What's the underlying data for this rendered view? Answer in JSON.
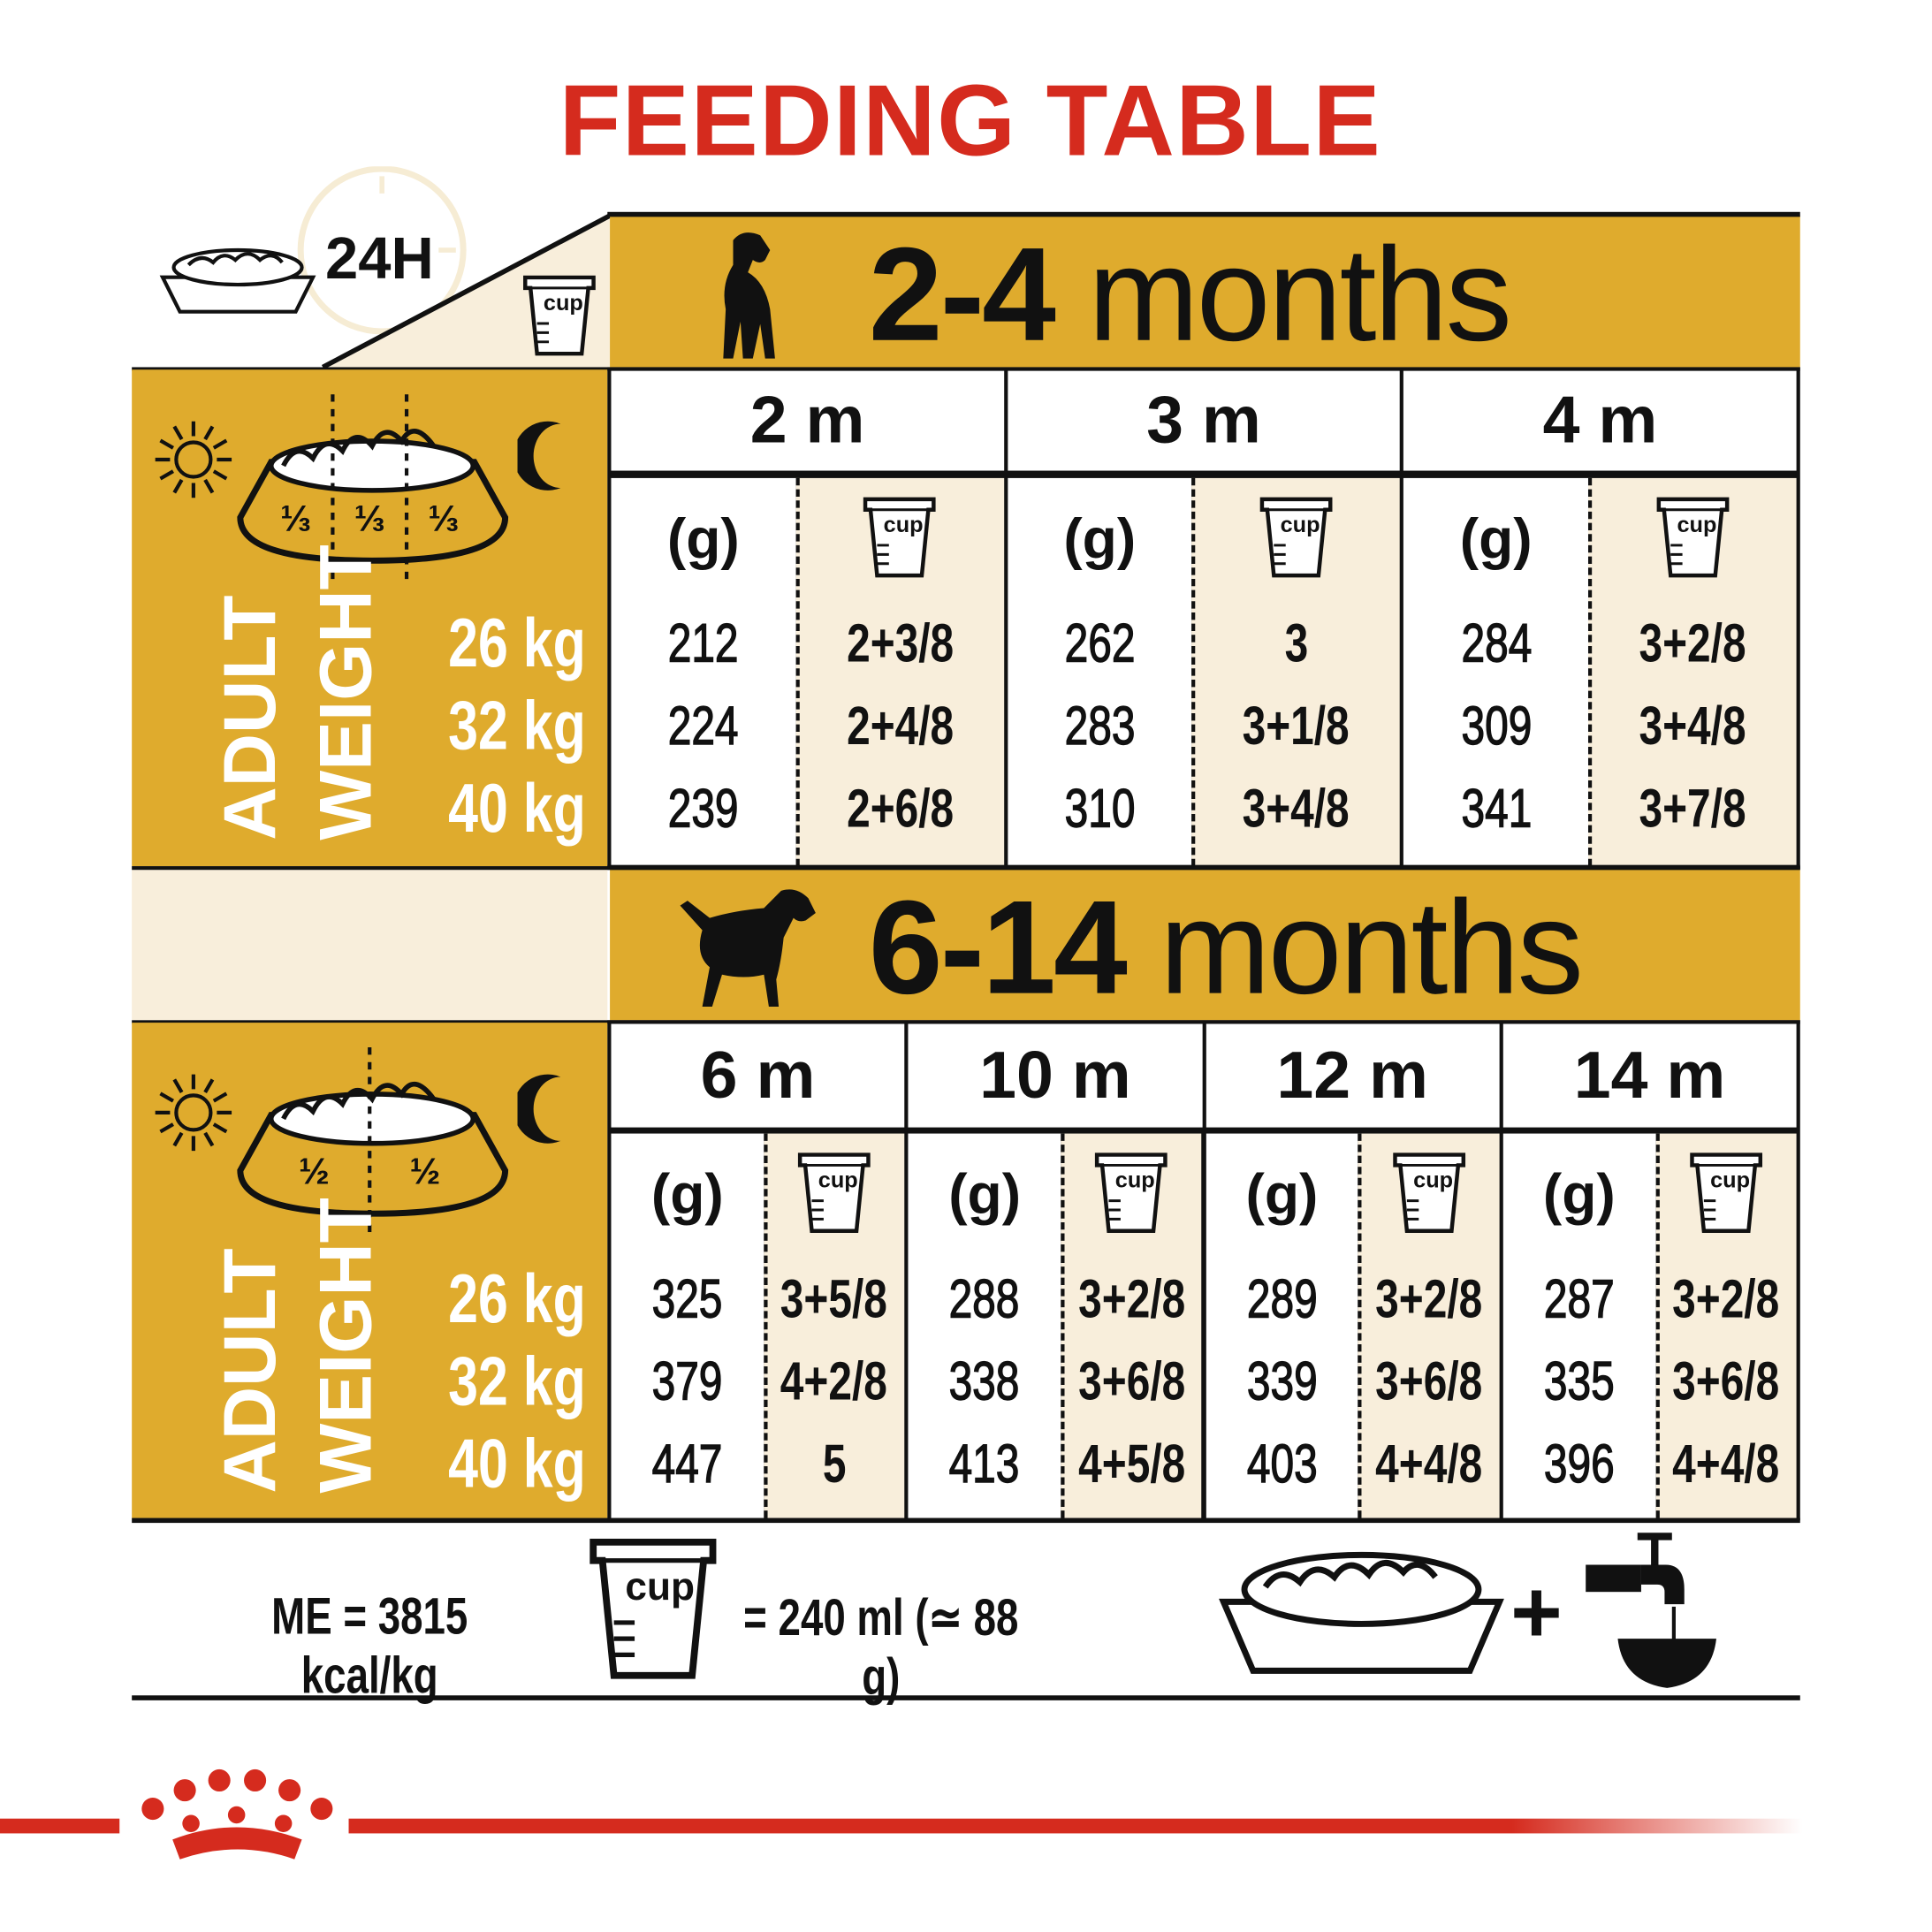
{
  "title": "FEEDING TABLE",
  "header": {
    "duration": "24H",
    "cup_label": "cup"
  },
  "unit_grams": "(g)",
  "cup_label": "cup",
  "colors": {
    "gold": "#dfab2d",
    "cream": "#f8eedb",
    "red": "#d52b1e",
    "black": "#111111"
  },
  "sections": [
    {
      "age_range_num": "2-4",
      "age_range_unit": "months",
      "icon": "puppy-silhouette-icon",
      "portions": [
        "⅓",
        "⅓",
        "⅓"
      ],
      "weight_label": [
        "ADULT",
        "WEIGHT"
      ],
      "weights": [
        "26 kg",
        "32 kg",
        "40 kg"
      ],
      "columns": [
        {
          "month": "2 m",
          "grams": [
            "212",
            "224",
            "239"
          ],
          "cups": [
            "2+3/8",
            "2+4/8",
            "2+6/8"
          ]
        },
        {
          "month": "3 m",
          "grams": [
            "262",
            "283",
            "310"
          ],
          "cups": [
            "3",
            "3+1/8",
            "3+4/8"
          ]
        },
        {
          "month": "4 m",
          "grams": [
            "284",
            "309",
            "341"
          ],
          "cups": [
            "3+2/8",
            "3+4/8",
            "3+7/8"
          ]
        }
      ]
    },
    {
      "age_range_num": "6-14",
      "age_range_unit": "months",
      "icon": "dog-silhouette-icon",
      "portions": [
        "½",
        "½"
      ],
      "weight_label": [
        "ADULT",
        "WEIGHT"
      ],
      "weights": [
        "26 kg",
        "32 kg",
        "40 kg"
      ],
      "columns": [
        {
          "month": "6 m",
          "grams": [
            "325",
            "379",
            "447"
          ],
          "cups": [
            "3+5/8",
            "4+2/8",
            "5"
          ]
        },
        {
          "month": "10 m",
          "grams": [
            "288",
            "338",
            "413"
          ],
          "cups": [
            "3+2/8",
            "3+6/8",
            "4+5/8"
          ]
        },
        {
          "month": "12 m",
          "grams": [
            "289",
            "339",
            "403"
          ],
          "cups": [
            "3+2/8",
            "3+6/8",
            "4+4/8"
          ]
        },
        {
          "month": "14 m",
          "grams": [
            "287",
            "335",
            "396"
          ],
          "cups": [
            "3+2/8",
            "3+6/8",
            "4+4/8"
          ]
        }
      ]
    }
  ],
  "footer": {
    "energy": "ME = 3815 kcal/kg",
    "cup_label": "cup",
    "cup_equivalence": "= 240 ml (≃ 88 g)",
    "plus": "+"
  }
}
